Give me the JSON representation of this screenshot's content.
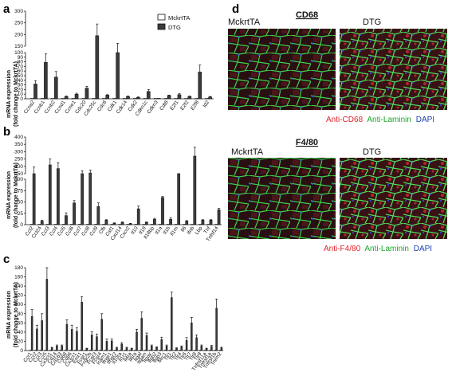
{
  "panels": {
    "a": {
      "letter": "a",
      "ylabel_line1": "mRNA expression",
      "ylabel_line2": "(fold change to MckrtTA)"
    },
    "b": {
      "letter": "b",
      "ylabel_line1": "mRNA expression",
      "ylabel_line2": "(fold change to MckrtTA)"
    },
    "c": {
      "letter": "c",
      "ylabel_line1": "mRNA expression",
      "ylabel_line2": "(fold change to MckrtTA)"
    },
    "d": {
      "letter": "d"
    }
  },
  "legend": {
    "items": [
      "MckrtTA",
      "DTG"
    ],
    "colors": [
      "#ffffff",
      "#3a3a3a"
    ]
  },
  "micrographs": {
    "cd68": {
      "title": "CD68",
      "left_label": "MckrtTA",
      "right_label": "DTG",
      "caption_parts": [
        "Anti-CD68",
        "Anti-Laminin",
        "DAPI"
      ],
      "caption_colors": [
        "#e0202a",
        "#1aa62a",
        "#1c3fb5"
      ]
    },
    "f480": {
      "title": "F4/80",
      "left_label": "MckrtTA",
      "right_label": "DTG",
      "caption_parts": [
        "Anti-F4/80",
        "Anti-Laminin",
        "DAPI"
      ],
      "caption_colors": [
        "#e0202a",
        "#1aa62a",
        "#1c3fb5"
      ]
    }
  },
  "chart_data": [
    {
      "panel": "a",
      "type": "bar",
      "broken_axis": true,
      "ylabel": "mRNA expression (fold change to MckrtTA)",
      "lower_ticks": [
        0,
        10,
        20,
        30,
        40,
        50,
        60,
        70,
        80,
        90,
        100
      ],
      "upper_ticks": [
        150,
        200,
        250,
        300
      ],
      "categories": [
        "Ccna2",
        "Ccnb1",
        "Ccnb2",
        "Ccnd1",
        "Ccne1",
        "Cdc20",
        "Cdc25c",
        "Cdc6",
        "Cdk1",
        "Cdk14",
        "Cdk2",
        "Cdkn1c",
        "Cdkn3",
        "Cdt6",
        "E2f1",
        "E2f2",
        "E2f8",
        "Id2"
      ],
      "series": [
        {
          "name": "MckrtTA",
          "values": [
            1,
            1,
            1,
            1,
            1,
            1,
            1,
            1,
            1,
            1,
            1,
            1,
            1,
            1,
            1,
            1,
            1,
            1
          ],
          "errors": [
            0,
            0,
            0,
            0,
            0,
            0,
            0,
            0,
            0,
            0,
            0,
            0,
            0,
            0,
            0,
            0,
            0,
            0
          ]
        },
        {
          "name": "DTG",
          "values": [
            32,
            79,
            47,
            5,
            10,
            23,
            195,
            8,
            100,
            5,
            3,
            16,
            1,
            7,
            9,
            5,
            58,
            4
          ],
          "errors": [
            7,
            18,
            12,
            1,
            2,
            4,
            50,
            1,
            62,
            1,
            1,
            4,
            0,
            1,
            2,
            1,
            15,
            1
          ]
        }
      ]
    },
    {
      "panel": "b",
      "type": "bar",
      "broken_axis": true,
      "ylabel": "mRNA expression (fold change to MckrtTA)",
      "lower_ticks": [
        0,
        25,
        50,
        75,
        100
      ],
      "upper_ticks": [
        150,
        200,
        250,
        300,
        350,
        400
      ],
      "categories": [
        "Ccl2",
        "Ccl24",
        "Ccl3",
        "Ccl4",
        "Ccl5",
        "Ccl6",
        "Ccl7",
        "Ccl8",
        "Ccl9",
        "Cfb",
        "Csf1",
        "Cxcl14",
        "Cxcr2",
        "Il10",
        "Il18",
        "Il18bp",
        "Il1a",
        "Il1b",
        "Il1rn",
        "Il6",
        "Ifnb",
        "Lbp",
        "Tnf",
        "Tnfsf14"
      ],
      "series": [
        {
          "name": "MckrtTA",
          "values": [
            1,
            1,
            1,
            1,
            1,
            1,
            1,
            1,
            1,
            1,
            1,
            1,
            1,
            1,
            1,
            1,
            1,
            1,
            1,
            1,
            1,
            1,
            1,
            1
          ],
          "errors": [
            0,
            0,
            0,
            0,
            0,
            0,
            0,
            0,
            0,
            0,
            0,
            0,
            0,
            0,
            0,
            0,
            0,
            0,
            0,
            0,
            0,
            0,
            0,
            0
          ]
        },
        {
          "name": "DTG",
          "values": [
            150,
            8,
            210,
            185,
            20,
            48,
            150,
            155,
            40,
            10,
            3,
            5,
            2,
            35,
            5,
            12,
            60,
            12,
            105,
            8,
            270,
            10,
            10,
            33
          ],
          "errors": [
            45,
            2,
            40,
            40,
            6,
            5,
            20,
            20,
            8,
            1,
            1,
            1,
            1,
            6,
            1,
            2,
            2,
            3,
            20,
            1,
            60,
            1,
            1,
            3
          ]
        }
      ]
    },
    {
      "panel": "c",
      "type": "bar",
      "ylabel": "mRNA expression (fold change to MckrtTA)",
      "ticks": [
        0,
        20,
        40,
        60,
        80,
        100,
        120,
        140,
        160,
        180
      ],
      "categories": [
        "Ccr1",
        "Ccr2",
        "Ccr3",
        "Ccr5",
        "Cx3cr1",
        "Cd14",
        "Cd163",
        "Cd68",
        "Cd86",
        "Cx3cr1",
        "Emr1",
        "Fcgr1",
        "Fcgr2b",
        "Fcgr3",
        "Fcgr4",
        "Icam1",
        "Ifngr1",
        "Ifngr2",
        "Il10ra",
        "Il1r1",
        "Il4ra",
        "Il6ra",
        "Itgal",
        "Itgam",
        "Itgax",
        "Itgb2",
        "Itgb3",
        "Mrc1",
        "Tlr1",
        "Tlr2",
        "Tlr4",
        "Tlr6",
        "Tlr7",
        "Tlr8",
        "Tlr9",
        "Tnfrsf11a",
        "Tnfrsf1a",
        "Tnfrsf1b",
        "Trem2"
      ],
      "series": [
        {
          "name": "MckrtTA",
          "values": [
            1,
            1,
            1,
            1,
            1,
            1,
            1,
            1,
            1,
            1,
            1,
            1,
            1,
            1,
            1,
            1,
            1,
            1,
            1,
            1,
            1,
            1,
            1,
            1,
            1,
            1,
            1,
            1,
            1,
            1,
            1,
            1,
            1,
            1,
            1,
            1,
            1,
            1,
            1
          ],
          "errors": [
            0,
            0,
            0,
            0,
            0,
            0,
            0,
            0,
            0,
            0,
            0,
            0,
            0,
            0,
            0,
            0,
            0,
            0,
            0,
            0,
            0,
            0,
            0,
            0,
            0,
            0,
            0,
            0,
            0,
            0,
            0,
            0,
            0,
            0,
            0,
            0,
            0,
            0,
            0
          ]
        },
        {
          "name": "DTG",
          "values": [
            74,
            47,
            65,
            155,
            6,
            10,
            10,
            57,
            46,
            42,
            105,
            4,
            34,
            30,
            68,
            20,
            21,
            6,
            14,
            6,
            4,
            40,
            70,
            33,
            10,
            7,
            24,
            10,
            115,
            5,
            8,
            22,
            60,
            28,
            10,
            4,
            9,
            92,
            6
          ],
          "errors": [
            15,
            8,
            15,
            25,
            1,
            2,
            2,
            10,
            9,
            8,
            12,
            1,
            7,
            6,
            12,
            5,
            4,
            1,
            3,
            1,
            1,
            6,
            14,
            5,
            2,
            1,
            5,
            2,
            12,
            1,
            2,
            6,
            12,
            6,
            2,
            1,
            2,
            20,
            1
          ]
        }
      ]
    }
  ]
}
